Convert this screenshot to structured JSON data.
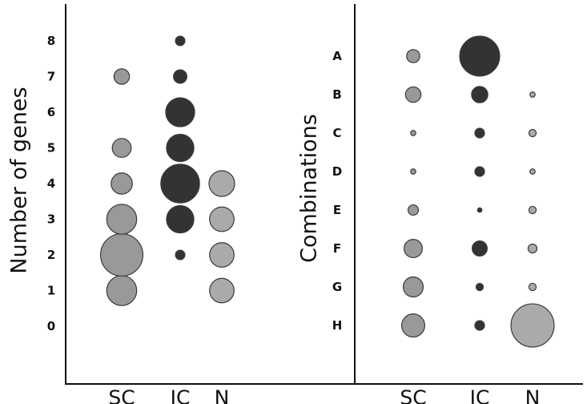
{
  "chart_data": [
    {
      "type": "scatter",
      "title": "",
      "ylabel": "Number of genes",
      "xlabel": "",
      "categories": [
        "SC",
        "IC",
        "N"
      ],
      "y_ticks": [
        "0",
        "1",
        "2",
        "3",
        "4",
        "5",
        "6",
        "7",
        "8"
      ],
      "ylim": [
        -0.5,
        8.5
      ],
      "size_encoding": "relative",
      "colors": {
        "SC": "#999999",
        "IC": "#333333",
        "N": "#aaaaaa"
      },
      "points": [
        {
          "x": "SC",
          "y": 1,
          "size": 3
        },
        {
          "x": "SC",
          "y": 2,
          "size": 6
        },
        {
          "x": "SC",
          "y": 3,
          "size": 3
        },
        {
          "x": "SC",
          "y": 4,
          "size": 1.5
        },
        {
          "x": "SC",
          "y": 5,
          "size": 1.2
        },
        {
          "x": "SC",
          "y": 7,
          "size": 0.8
        },
        {
          "x": "IC",
          "y": 2,
          "size": 0.3
        },
        {
          "x": "IC",
          "y": 3,
          "size": 2.5
        },
        {
          "x": "IC",
          "y": 4,
          "size": 5
        },
        {
          "x": "IC",
          "y": 5,
          "size": 2.5
        },
        {
          "x": "IC",
          "y": 6,
          "size": 2.8
        },
        {
          "x": "IC",
          "y": 7,
          "size": 0.6
        },
        {
          "x": "IC",
          "y": 8,
          "size": 0.3
        },
        {
          "x": "N",
          "y": 1,
          "size": 2
        },
        {
          "x": "N",
          "y": 2,
          "size": 2
        },
        {
          "x": "N",
          "y": 3,
          "size": 2
        },
        {
          "x": "N",
          "y": 4,
          "size": 2.2
        }
      ]
    },
    {
      "type": "scatter",
      "title": "",
      "ylabel": "Combinations",
      "xlabel": "",
      "categories": [
        "SC",
        "IC",
        "N"
      ],
      "y_ticks": [
        "A",
        "B",
        "C",
        "D",
        "E",
        "F",
        "G",
        "H"
      ],
      "size_encoding": "relative",
      "colors": {
        "SC": "#999999",
        "IC": "#333333",
        "N": "#aaaaaa"
      },
      "points": [
        {
          "x": "SC",
          "y": "A",
          "size": 1.3
        },
        {
          "x": "SC",
          "y": "B",
          "size": 1.8
        },
        {
          "x": "SC",
          "y": "C",
          "size": 0.2
        },
        {
          "x": "SC",
          "y": "D",
          "size": 0.2
        },
        {
          "x": "SC",
          "y": "E",
          "size": 0.8
        },
        {
          "x": "SC",
          "y": "F",
          "size": 2.5
        },
        {
          "x": "SC",
          "y": "G",
          "size": 3
        },
        {
          "x": "SC",
          "y": "H",
          "size": 4
        },
        {
          "x": "IC",
          "y": "A",
          "size": 12
        },
        {
          "x": "IC",
          "y": "B",
          "size": 2
        },
        {
          "x": "IC",
          "y": "C",
          "size": 0.7
        },
        {
          "x": "IC",
          "y": "D",
          "size": 0.7
        },
        {
          "x": "IC",
          "y": "E",
          "size": 0.15
        },
        {
          "x": "IC",
          "y": "F",
          "size": 1.7
        },
        {
          "x": "IC",
          "y": "G",
          "size": 0.4
        },
        {
          "x": "IC",
          "y": "H",
          "size": 0.7
        },
        {
          "x": "N",
          "y": "B",
          "size": 0.2
        },
        {
          "x": "N",
          "y": "C",
          "size": 0.4
        },
        {
          "x": "N",
          "y": "D",
          "size": 0.2
        },
        {
          "x": "N",
          "y": "E",
          "size": 0.4
        },
        {
          "x": "N",
          "y": "F",
          "size": 0.6
        },
        {
          "x": "N",
          "y": "G",
          "size": 0.4
        },
        {
          "x": "N",
          "y": "H",
          "size": 14
        }
      ]
    }
  ]
}
